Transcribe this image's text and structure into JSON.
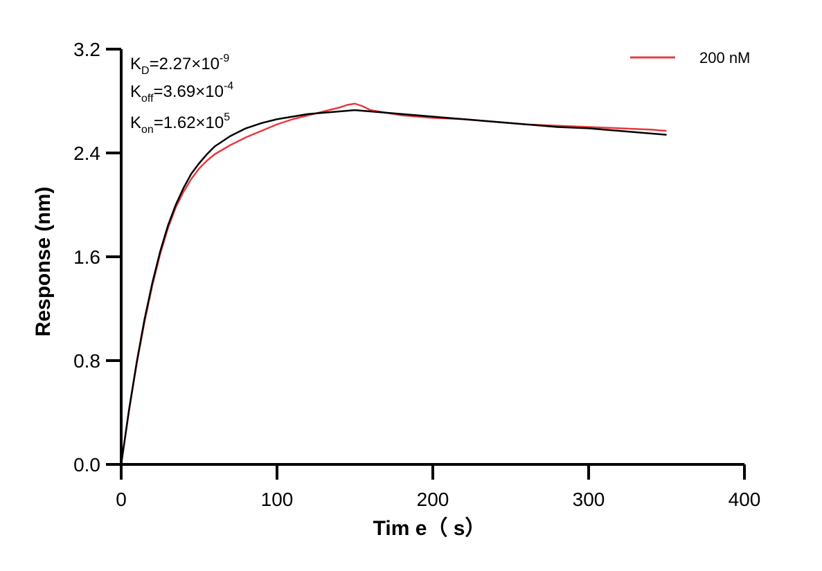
{
  "chart_data": {
    "type": "line",
    "xlabel": "Tim e（ s）",
    "ylabel": "Response (nm)",
    "xlim": [
      0,
      400
    ],
    "ylim": [
      0.0,
      3.2
    ],
    "x_ticks": [
      "0",
      "100",
      "200",
      "300",
      "400"
    ],
    "y_ticks": [
      "0.0",
      "0.8",
      "1.6",
      "2.4",
      "3.2"
    ],
    "grid": false,
    "legend_position": "top-right",
    "annotations": {
      "kd": {
        "base": "K",
        "sub": "D",
        "value": "=2.27×10",
        "exp": "-9"
      },
      "koff": {
        "base": "K",
        "sub": "off",
        "value": "=3.69×10",
        "exp": "-4"
      },
      "kon": {
        "base": "K",
        "sub": "on",
        "value": "=1.62×10",
        "exp": "5"
      }
    },
    "series": [
      {
        "name": "200 nM",
        "color": "#e8383d",
        "x": [
          0,
          5,
          10,
          15,
          20,
          25,
          30,
          35,
          40,
          45,
          50,
          55,
          60,
          70,
          80,
          90,
          100,
          110,
          120,
          130,
          140,
          145,
          150,
          155,
          160,
          170,
          180,
          190,
          200,
          220,
          240,
          260,
          280,
          300,
          320,
          340,
          350
        ],
        "y": [
          0.0,
          0.41,
          0.78,
          1.1,
          1.38,
          1.62,
          1.82,
          1.98,
          2.1,
          2.2,
          2.28,
          2.34,
          2.39,
          2.46,
          2.52,
          2.57,
          2.62,
          2.66,
          2.69,
          2.72,
          2.75,
          2.77,
          2.78,
          2.76,
          2.73,
          2.71,
          2.69,
          2.68,
          2.67,
          2.66,
          2.64,
          2.62,
          2.61,
          2.6,
          2.59,
          2.58,
          2.57
        ]
      },
      {
        "name": "",
        "color": "#000000",
        "x": [
          0,
          5,
          10,
          15,
          20,
          25,
          30,
          35,
          40,
          45,
          50,
          55,
          60,
          70,
          80,
          90,
          100,
          110,
          120,
          130,
          140,
          150,
          160,
          180,
          200,
          220,
          240,
          260,
          280,
          300,
          320,
          340,
          350
        ],
        "y": [
          0.0,
          0.42,
          0.79,
          1.12,
          1.4,
          1.64,
          1.84,
          2.0,
          2.13,
          2.24,
          2.32,
          2.39,
          2.45,
          2.53,
          2.59,
          2.63,
          2.66,
          2.68,
          2.7,
          2.71,
          2.72,
          2.73,
          2.72,
          2.7,
          2.68,
          2.66,
          2.64,
          2.62,
          2.6,
          2.59,
          2.57,
          2.55,
          2.54
        ]
      }
    ]
  }
}
